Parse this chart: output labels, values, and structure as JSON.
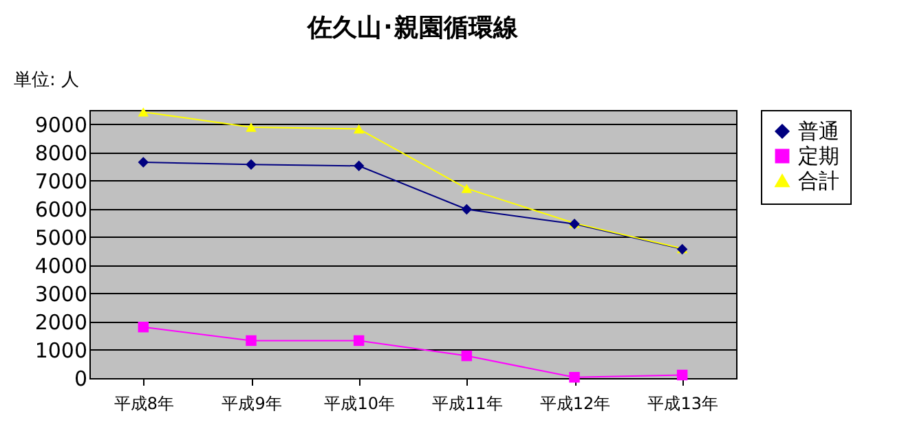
{
  "chart_data": {
    "type": "line",
    "title": "佐久山･親園循環線",
    "annotations": [
      "単位: 人"
    ],
    "categories": [
      "平成8年",
      "平成9年",
      "平成10年",
      "平成11年",
      "平成12年",
      "平成13年"
    ],
    "series": [
      {
        "name": "普通",
        "color": "#000080",
        "marker": "diamond",
        "values": [
          7650,
          7570,
          7520,
          5980,
          5460,
          4570
        ]
      },
      {
        "name": "定期",
        "color": "#ff00ff",
        "marker": "square",
        "values": [
          1810,
          1330,
          1330,
          790,
          30,
          110
        ]
      },
      {
        "name": "合計",
        "color": "#ffff00",
        "marker": "triangle",
        "values": [
          9430,
          8890,
          8830,
          6720,
          5490,
          4590
        ]
      }
    ],
    "ylim": [
      0,
      9500
    ],
    "yticks": [
      0,
      1000,
      2000,
      3000,
      4000,
      5000,
      6000,
      7000,
      8000,
      9000
    ],
    "grid": "y",
    "legend": "right",
    "line_style": "solid"
  }
}
